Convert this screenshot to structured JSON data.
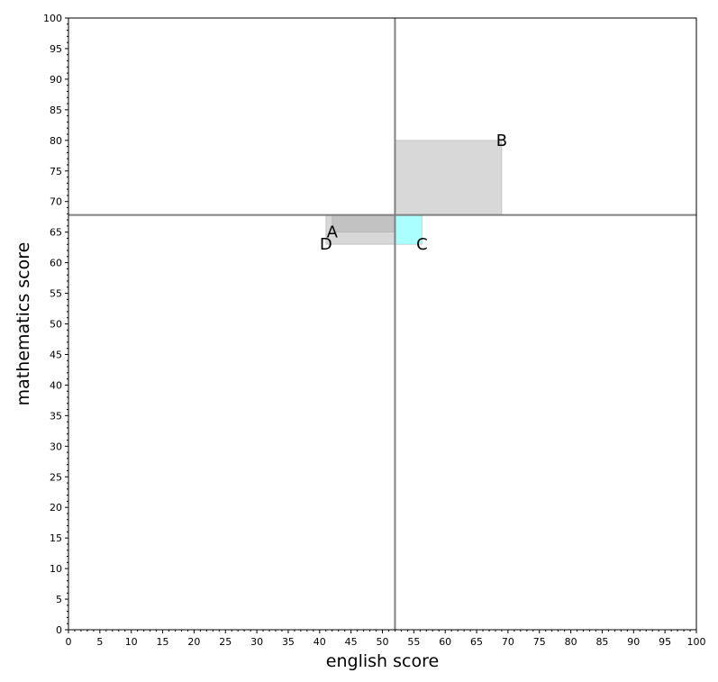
{
  "chart_data": {
    "type": "scatter",
    "title": "",
    "xlabel": "english score",
    "ylabel": "mathematics score",
    "xlim": [
      0,
      100
    ],
    "ylim": [
      0,
      100
    ],
    "xticks": [
      0,
      5,
      10,
      15,
      20,
      25,
      30,
      35,
      40,
      45,
      50,
      55,
      60,
      65,
      70,
      75,
      80,
      85,
      90,
      95,
      100
    ],
    "yticks": [
      0,
      5,
      10,
      15,
      20,
      25,
      30,
      35,
      40,
      45,
      50,
      55,
      60,
      65,
      70,
      75,
      80,
      85,
      90,
      95,
      100
    ],
    "grid": false,
    "mean_lines": {
      "x": 52,
      "y": 67.8
    },
    "points": [
      {
        "label": "A",
        "x": 42,
        "y": 65
      },
      {
        "label": "B",
        "x": 69,
        "y": 80
      },
      {
        "label": "C",
        "x": 56.3,
        "y": 63
      },
      {
        "label": "D",
        "x": 41,
        "y": 63
      }
    ],
    "colors": {
      "rect_negative": "#b4b4b4",
      "rect_positive": "#a8a8a8",
      "rect_highlight": "#aaffff",
      "mean_line": "#808080"
    }
  }
}
